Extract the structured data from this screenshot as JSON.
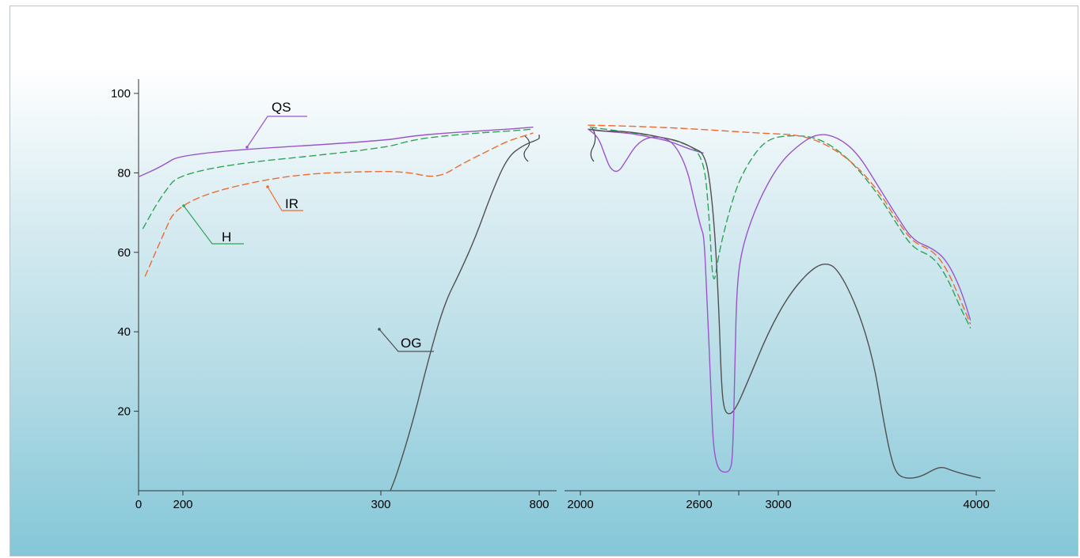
{
  "chart_data": {
    "type": "line",
    "title": "",
    "xlabel": "",
    "ylabel": "",
    "ylim": [
      0,
      100
    ],
    "y_ticks": [
      "20",
      "40",
      "60",
      "80",
      "100"
    ],
    "x_ticks": [
      "0",
      "200",
      "300",
      "800",
      "2000",
      "2600",
      "3000",
      "4000"
    ],
    "x_axis_note": "broken x-axis: segment 0-800 and segment 2000-4000",
    "grid": false,
    "colors": {
      "QS": "#9a55c9",
      "H": "#2fa35a",
      "IR": "#ef6a2f",
      "OG": "#505050",
      "axis": "#333333"
    },
    "series": [
      {
        "name": "QS",
        "style": "solid",
        "segments": [
          [
            [
              0,
              79
            ],
            [
              100,
              81.5
            ],
            [
              200,
              85
            ],
            [
              300,
              88
            ],
            [
              400,
              89.3
            ],
            [
              500,
              90
            ],
            [
              600,
              90.5
            ],
            [
              700,
              91
            ],
            [
              780,
              91.5
            ]
          ],
          [
            [
              2050,
              91
            ],
            [
              2150,
              90.3
            ],
            [
              2250,
              90
            ],
            [
              2350,
              89
            ],
            [
              2450,
              88
            ],
            [
              2550,
              86
            ],
            [
              2620,
              85
            ]
          ]
        ]
      },
      {
        "name": "H",
        "style": "dashed",
        "segments": [
          [
            [
              20,
              66
            ],
            [
              100,
              74
            ],
            [
              200,
              81
            ],
            [
              300,
              86
            ],
            [
              400,
              88.3
            ],
            [
              500,
              89.3
            ],
            [
              600,
              90
            ],
            [
              700,
              90.5
            ],
            [
              780,
              91
            ]
          ],
          [
            [
              2050,
              91.5
            ],
            [
              2200,
              90.5
            ],
            [
              2350,
              89.5
            ],
            [
              2500,
              88
            ],
            [
              2620,
              85
            ],
            [
              2650,
              70
            ],
            [
              2670,
              50
            ],
            [
              2700,
              60
            ],
            [
              2750,
              70
            ],
            [
              2800,
              78
            ],
            [
              2880,
              85
            ],
            [
              2950,
              88.5
            ],
            [
              3050,
              89.5
            ],
            [
              3200,
              89
            ],
            [
              3350,
              84
            ],
            [
              3500,
              75
            ],
            [
              3600,
              67
            ],
            [
              3680,
              61
            ],
            [
              3780,
              59
            ],
            [
              3850,
              54
            ],
            [
              3920,
              46
            ],
            [
              3970,
              41
            ]
          ]
        ]
      },
      {
        "name": "IR",
        "style": "dashed",
        "segments": [
          [
            [
              30,
              54
            ],
            [
              100,
              63
            ],
            [
              180,
              73
            ],
            [
              250,
              79.5
            ],
            [
              300,
              80.5
            ],
            [
              400,
              80
            ],
            [
              450,
              79
            ],
            [
              500,
              79.5
            ],
            [
              550,
              82
            ],
            [
              650,
              86
            ],
            [
              700,
              88
            ],
            [
              780,
              90
            ]
          ],
          [
            [
              2040,
              92
            ],
            [
              2300,
              91.7
            ],
            [
              2600,
              91
            ],
            [
              2900,
              90
            ],
            [
              3150,
              89.5
            ],
            [
              3350,
              84
            ],
            [
              3500,
              76
            ],
            [
              3600,
              68
            ],
            [
              3680,
              62.5
            ],
            [
              3780,
              60.5
            ],
            [
              3850,
              56
            ],
            [
              3920,
              48
            ],
            [
              3970,
              42
            ]
          ]
        ]
      },
      {
        "name": "OG",
        "style": "solid",
        "segments": [
          [
            [
              330,
              0
            ],
            [
              350,
              4
            ],
            [
              400,
              17
            ],
            [
              450,
              33
            ],
            [
              500,
              47
            ],
            [
              550,
              55
            ],
            [
              600,
              64
            ],
            [
              650,
              75
            ],
            [
              700,
              84
            ],
            [
              750,
              87
            ],
            [
              800,
              88.5
            ],
            [
              850,
              89
            ],
            [
              1000,
              89.3
            ],
            [
              1100,
              89.5
            ],
            [
              1200,
              89.5
            ]
          ],
          [
            [
              2040,
              91
            ],
            [
              2100,
              90.5
            ],
            [
              2200,
              90.5
            ],
            [
              2300,
              90
            ],
            [
              2400,
              89
            ],
            [
              2500,
              88
            ],
            [
              2580,
              86
            ],
            [
              2620,
              85
            ],
            [
              2650,
              80
            ],
            [
              2680,
              65
            ],
            [
              2700,
              45
            ],
            [
              2710,
              30
            ],
            [
              2720,
              22
            ],
            [
              2740,
              19
            ],
            [
              2780,
              20
            ],
            [
              2850,
              28
            ],
            [
              2950,
              40
            ],
            [
              3050,
              49
            ],
            [
              3150,
              55
            ],
            [
              3230,
              57.5
            ],
            [
              3300,
              56
            ],
            [
              3400,
              46
            ],
            [
              3480,
              33
            ],
            [
              3530,
              18
            ],
            [
              3570,
              8
            ],
            [
              3600,
              4
            ],
            [
              3650,
              3
            ],
            [
              3720,
              3.5
            ],
            [
              3790,
              5.5
            ],
            [
              3830,
              6
            ],
            [
              3880,
              5
            ],
            [
              3950,
              4
            ],
            [
              4020,
              3.2
            ]
          ]
        ]
      },
      {
        "name": "",
        "style": "solid",
        "color_key": "QS",
        "segments": [
          [
            [
              2040,
              91
            ],
            [
              2090,
              89
            ],
            [
              2120,
              85
            ],
            [
              2150,
              81
            ],
            [
              2190,
              80
            ],
            [
              2230,
              83
            ],
            [
              2280,
              87
            ],
            [
              2340,
              89
            ],
            [
              2420,
              89
            ],
            [
              2480,
              87
            ],
            [
              2540,
              81
            ],
            [
              2580,
              72
            ],
            [
              2610,
              66
            ],
            [
              2625,
              64
            ],
            [
              2640,
              48
            ],
            [
              2660,
              25
            ],
            [
              2670,
              12
            ],
            [
              2690,
              6
            ],
            [
              2720,
              4.5
            ],
            [
              2760,
              5
            ],
            [
              2770,
              10
            ],
            [
              2780,
              30
            ],
            [
              2790,
              52
            ],
            [
              2820,
              62
            ],
            [
              2900,
              73
            ],
            [
              3000,
              82
            ],
            [
              3100,
              87
            ],
            [
              3200,
              90
            ],
            [
              3300,
              89
            ],
            [
              3400,
              85
            ],
            [
              3500,
              77
            ],
            [
              3600,
              69
            ],
            [
              3680,
              63
            ],
            [
              3780,
              61
            ],
            [
              3850,
              58
            ],
            [
              3920,
              51
            ],
            [
              3970,
              43
            ]
          ]
        ]
      }
    ],
    "labels": [
      "QS",
      "H",
      "IR",
      "OG"
    ]
  }
}
